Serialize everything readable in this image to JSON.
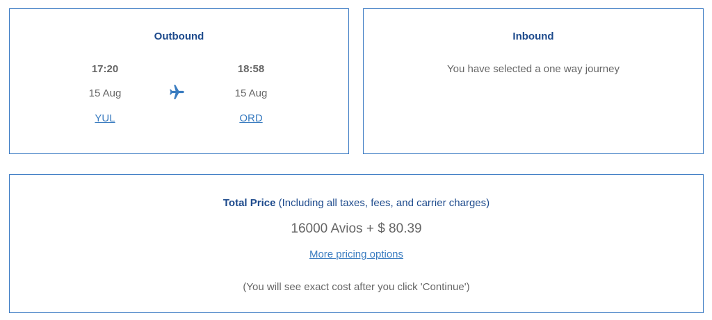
{
  "outbound": {
    "title": "Outbound",
    "depart": {
      "time": "17:20",
      "date": "15 Aug",
      "airport": "YUL"
    },
    "arrive": {
      "time": "18:58",
      "date": "15 Aug",
      "airport": "ORD"
    },
    "icon": "airplane-icon"
  },
  "inbound": {
    "title": "Inbound",
    "message": "You have selected a one way journey"
  },
  "price": {
    "label": "Total Price",
    "note": "(Including all taxes, fees, and carrier charges)",
    "amount": "16000 Avios + $ 80.39",
    "more_link": "More pricing options",
    "disclaimer": "(You will see exact cost after you click 'Continue')"
  },
  "colors": {
    "border": "#3d7cc4",
    "heading": "#1d4a8c",
    "link": "#3a7cc0"
  }
}
